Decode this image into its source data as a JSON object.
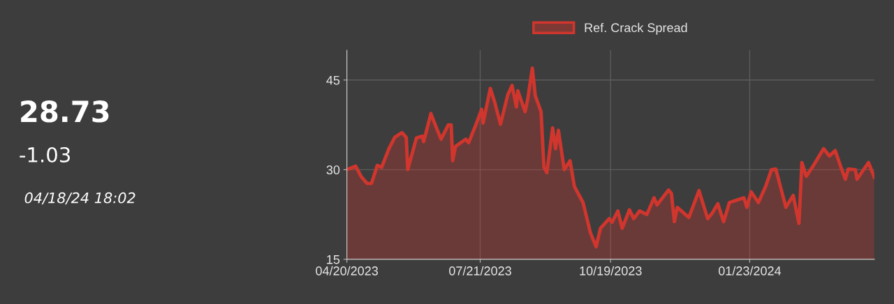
{
  "chart_data": {
    "type": "area",
    "annotations": [
      "28.73",
      "-1.03",
      "04/18/24 18:02"
    ],
    "xlim": [
      "2023-04-20",
      "2024-04-18"
    ],
    "xticks": [
      {
        "value": "2023-04-20",
        "label": "04/20/2023"
      },
      {
        "value": "2023-07-21",
        "label": "07/21/2023"
      },
      {
        "value": "2023-10-19",
        "label": "10/19/2023"
      },
      {
        "value": "2024-01-23",
        "label": "01/23/2024"
      }
    ],
    "ylim": [
      15,
      50
    ],
    "yticks": [
      15,
      30,
      45
    ],
    "grid": true,
    "legend": "top",
    "series": [
      {
        "name": "Ref. Crack Spread",
        "color": "#d0362d",
        "x": [
          "2023-04-20",
          "2023-04-24",
          "2023-04-26",
          "2023-04-30",
          "2023-05-04",
          "2023-05-07",
          "2023-05-11",
          "2023-05-14",
          "2023-05-19",
          "2023-05-23",
          "2023-05-28",
          "2023-05-31",
          "2023-06-01",
          "2023-06-07",
          "2023-06-11",
          "2023-06-12",
          "2023-06-17",
          "2023-06-20",
          "2023-06-24",
          "2023-06-29",
          "2023-07-01",
          "2023-07-02",
          "2023-07-04",
          "2023-07-11",
          "2023-07-13",
          "2023-07-18",
          "2023-07-22",
          "2023-07-23",
          "2023-07-28",
          "2023-07-31",
          "2023-08-04",
          "2023-08-09",
          "2023-08-12",
          "2023-08-15",
          "2023-08-16",
          "2023-08-21",
          "2023-08-23",
          "2023-08-26",
          "2023-08-28",
          "2023-09-01",
          "2023-09-03",
          "2023-09-05",
          "2023-09-09",
          "2023-09-11",
          "2023-09-13",
          "2023-09-17",
          "2023-09-21",
          "2023-09-24",
          "2023-09-30",
          "2023-10-05",
          "2023-10-09",
          "2023-10-12",
          "2023-10-18",
          "2023-10-20",
          "2023-10-24",
          "2023-10-27",
          "2023-11-01",
          "2023-11-04",
          "2023-11-08",
          "2023-11-13",
          "2023-11-18",
          "2023-11-20",
          "2023-11-28",
          "2023-11-30",
          "2023-12-02",
          "2023-12-04",
          "2023-12-12",
          "2023-12-19",
          "2023-12-25",
          "2023-12-28",
          "2024-01-01",
          "2024-01-05",
          "2024-01-09",
          "2024-01-19",
          "2024-01-21",
          "2024-01-24",
          "2024-01-29",
          "2024-02-03",
          "2024-02-07",
          "2024-02-10",
          "2024-02-17",
          "2024-02-22",
          "2024-02-26",
          "2024-02-28",
          "2024-03-02",
          "2024-03-07",
          "2024-03-14",
          "2024-03-18",
          "2024-03-22",
          "2024-03-26",
          "2024-03-29",
          "2024-03-31",
          "2024-04-05",
          "2024-04-06",
          "2024-04-14",
          "2024-04-18"
        ],
        "values": [
          30.0,
          30.4,
          30.6,
          28.8,
          27.7,
          27.7,
          30.7,
          30.4,
          33.5,
          35.4,
          36.2,
          35.4,
          30.0,
          35.3,
          35.6,
          34.7,
          39.4,
          37.5,
          35.1,
          37.5,
          37.5,
          31.5,
          33.9,
          35.1,
          34.5,
          37.5,
          40.1,
          37.8,
          43.6,
          41.3,
          37.6,
          42.5,
          44.1,
          40.5,
          43.2,
          39.7,
          42.1,
          47.0,
          42.4,
          39.7,
          30.4,
          29.5,
          37.0,
          33.5,
          36.6,
          30.0,
          31.5,
          27.2,
          24.5,
          19.5,
          17.1,
          20.2,
          21.8,
          21.2,
          23.1,
          20.2,
          23.3,
          21.8,
          23.1,
          22.5,
          25.3,
          24.1,
          26.6,
          26.0,
          21.3,
          23.7,
          22.0,
          26.5,
          21.8,
          22.7,
          24.3,
          21.3,
          24.5,
          25.3,
          23.7,
          26.3,
          24.5,
          27.2,
          30.0,
          30.1,
          23.7,
          25.7,
          21.0,
          31.2,
          28.9,
          30.7,
          33.5,
          32.3,
          33.2,
          30.4,
          28.4,
          30.1,
          30.0,
          28.4,
          31.2,
          28.73
        ]
      }
    ]
  }
}
